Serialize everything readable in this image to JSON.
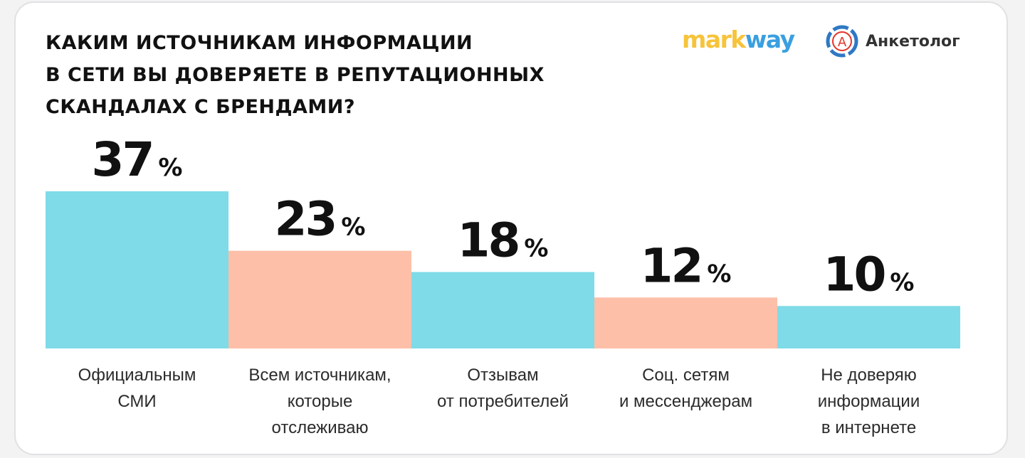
{
  "title_lines": [
    "Каким источникам информации",
    "в сети вы доверяете в репутационных",
    "скандалах с брендами?"
  ],
  "logos": {
    "markway_part1": "mark",
    "markway_part2": "way",
    "anketolog": "Анкетолог",
    "anketolog_letter": "А"
  },
  "colors": {
    "cyan": "#7fdbe7",
    "peach": "#fdbfa8",
    "markway_yellow": "#f6c33a",
    "markway_blue": "#3a9fe0",
    "anketolog_red": "#e2352b",
    "anketolog_blue": "#2f78c4"
  },
  "chart_data": {
    "type": "bar",
    "categories": [
      [
        "Официальным",
        "СМИ"
      ],
      [
        "Всем источникам,",
        "которые",
        "отслеживаю"
      ],
      [
        "Отзывам",
        "от потребителей"
      ],
      [
        "Соц. сетям",
        "и мессенджерам"
      ],
      [
        "Не доверяю",
        "информации",
        "в интернете"
      ]
    ],
    "values": [
      37,
      23,
      18,
      12,
      10
    ],
    "value_labels": [
      "37",
      "23",
      "18",
      "12",
      "10"
    ],
    "unit": "%",
    "bar_colors": [
      "#7fdbe7",
      "#fdbfa8",
      "#7fdbe7",
      "#fdbfa8",
      "#7fdbe7"
    ],
    "ylim": [
      0,
      37
    ],
    "grid": false,
    "legend": "none"
  }
}
